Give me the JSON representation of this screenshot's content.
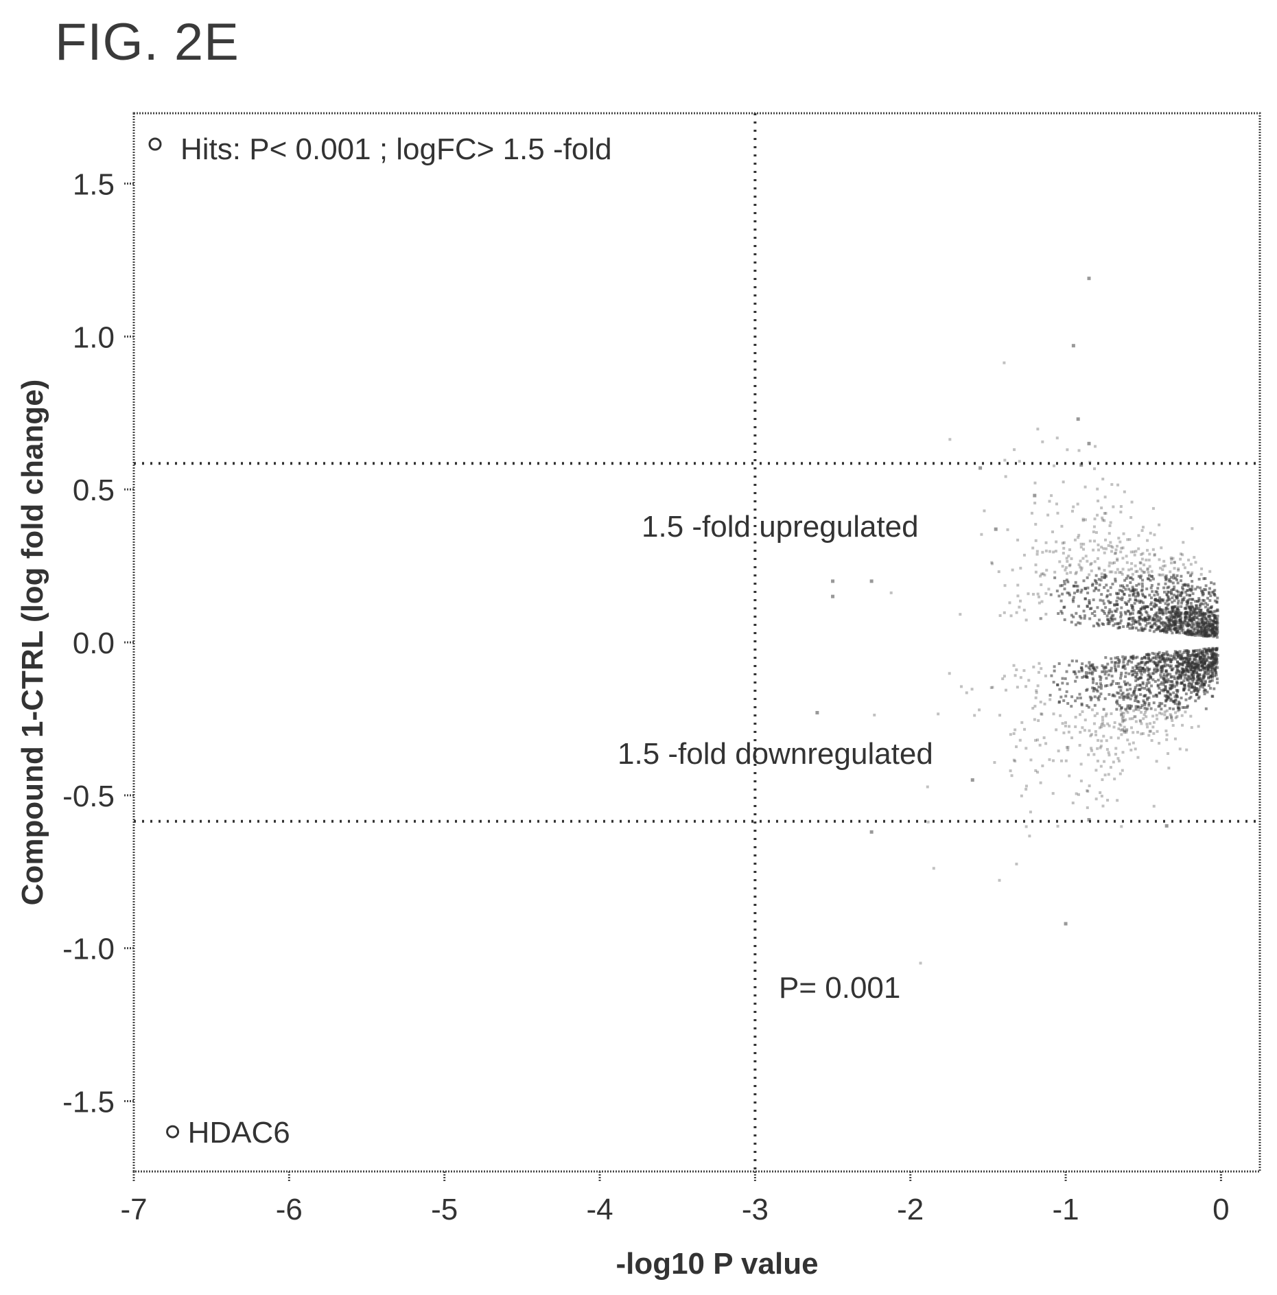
{
  "figure_title": "FIG. 2E",
  "chart_data": {
    "type": "scatter",
    "xlabel": "-log10 P value",
    "ylabel": "Compound 1-CTRL (log fold change)",
    "xlim": [
      -7,
      0.25
    ],
    "ylim": [
      -1.73,
      1.73
    ],
    "x_ticks": [
      -7,
      -6,
      -5,
      -4,
      -3,
      -2,
      -1,
      0
    ],
    "x_tick_labels": [
      "-7",
      "-6",
      "-5",
      "-4",
      "-3",
      "-2",
      "-1",
      "0"
    ],
    "y_ticks": [
      1.5,
      1.0,
      0.5,
      0.0,
      -0.5,
      -1.0,
      -1.5
    ],
    "y_tick_labels": [
      "1.5",
      "1.0",
      "0.5",
      "0.0",
      "-0.5",
      "-1.0",
      "-1.5"
    ],
    "grid": false,
    "legend": {
      "placement": "top-left",
      "label": "Hits: P< 0.001 ; logFC> 1.5 -fold"
    },
    "reference_lines": {
      "vertical": [
        {
          "x": -3,
          "label": "P= 0.001"
        }
      ],
      "horizontal": [
        {
          "y": 0.585,
          "label": "1.5 -fold upregulated"
        },
        {
          "y": -0.585,
          "label": "1.5 -fold downregulated"
        }
      ]
    },
    "hits": [
      {
        "x": -6.75,
        "y": -1.6,
        "label": "HDAC6"
      }
    ],
    "scatter_cloud": {
      "description_points": [
        {
          "x": -0.85,
          "y": 1.19
        },
        {
          "x": -0.95,
          "y": 0.97
        },
        {
          "x": -0.92,
          "y": 0.73
        },
        {
          "x": -0.85,
          "y": 0.65
        },
        {
          "x": -0.9,
          "y": 0.58
        },
        {
          "x": -1.55,
          "y": 0.57
        },
        {
          "x": -1.2,
          "y": 0.48
        },
        {
          "x": -1.45,
          "y": 0.37
        },
        {
          "x": -2.5,
          "y": 0.2
        },
        {
          "x": -2.25,
          "y": 0.2
        },
        {
          "x": -2.5,
          "y": 0.15
        },
        {
          "x": -2.6,
          "y": -0.23
        },
        {
          "x": -2.25,
          "y": -0.62
        },
        {
          "x": -1.6,
          "y": -0.45
        },
        {
          "x": -1.0,
          "y": -0.92
        },
        {
          "x": -0.35,
          "y": -0.6
        },
        {
          "x": -0.85,
          "y": -0.58
        }
      ]
    }
  }
}
